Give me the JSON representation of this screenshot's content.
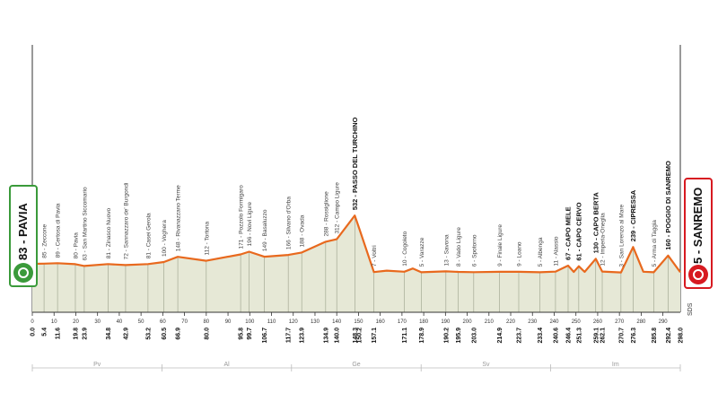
{
  "start": {
    "label": "83 - PAVIA",
    "color": "#3a9a3a",
    "icon": "cycling-icon"
  },
  "finish": {
    "label": "5 - SANREMO",
    "color": "#d71a21",
    "icon": "cycling-icon"
  },
  "credit": "SDS",
  "chart_data": {
    "type": "area",
    "title": "",
    "xlabel": "",
    "ylabel": "",
    "xlim": [
      0,
      298
    ],
    "line_color": "#e8691e",
    "fill_color": "#e6e8d6",
    "x_ticks": [
      "0",
      "10",
      "20",
      "30",
      "40",
      "50",
      "60",
      "70",
      "80",
      "90",
      "100",
      "110",
      "120",
      "130",
      "140",
      "150",
      "160",
      "170",
      "180",
      "190",
      "200",
      "210",
      "220",
      "230",
      "240",
      "250",
      "260",
      "270",
      "280",
      "290"
    ],
    "km_labels": [
      "0.0",
      "5.4",
      "11.6",
      "19.8",
      "23.9",
      "34.8",
      "42.9",
      "53.2",
      "60.5",
      "66.9",
      "80.0",
      "95.8",
      "99.7",
      "106.7",
      "117.7",
      "123.9",
      "134.9",
      "140.0",
      "148.3",
      "150.2",
      "157.1",
      "171.1",
      "178.9",
      "190.2",
      "195.9",
      "203.0",
      "214.9",
      "223.7",
      "233.4",
      "240.6",
      "246.4",
      "251.3",
      "259.1",
      "262.1",
      "270.7",
      "276.3",
      "285.8",
      "292.4",
      "298.0"
    ],
    "waypoints": [
      {
        "km": 5.4,
        "name": "85 - Zeccone"
      },
      {
        "km": 11.6,
        "name": "89 - Certosa di Pavia"
      },
      {
        "km": 19.8,
        "name": "80 - Pavia"
      },
      {
        "km": 23.9,
        "name": "63 - San Martino Siccomario"
      },
      {
        "km": 34.8,
        "name": "81 - Zinasco Nuovo"
      },
      {
        "km": 42.9,
        "name": "72 - Sannazzaro de' Burgondi"
      },
      {
        "km": 53.2,
        "name": "81 - Casei Gerola"
      },
      {
        "km": 60.5,
        "name": "100 - Voghera"
      },
      {
        "km": 66.9,
        "name": "148 - Rivanazzano Terme"
      },
      {
        "km": 80.0,
        "name": "112 - Tortona"
      },
      {
        "km": 95.8,
        "name": "171 - Pozzolo Formigaro"
      },
      {
        "km": 99.7,
        "name": "196 - Novi Ligure"
      },
      {
        "km": 106.7,
        "name": "149 - Basaluzzo"
      },
      {
        "km": 117.7,
        "name": "166 - Silvano d'Orba"
      },
      {
        "km": 123.9,
        "name": "188 - Ovada"
      },
      {
        "km": 134.9,
        "name": "288 - Rossiglione"
      },
      {
        "km": 140.0,
        "name": "312 - Campo Ligure"
      },
      {
        "km": 148.3,
        "name": "532 - PASSO DEL TURCHINO",
        "highlight": true
      },
      {
        "km": 157.1,
        "name": "7 - Voltri"
      },
      {
        "km": 171.1,
        "name": "10 - Cogoleto"
      },
      {
        "km": 178.9,
        "name": "5 - Varazze"
      },
      {
        "km": 190.2,
        "name": "13 - Savona"
      },
      {
        "km": 195.9,
        "name": "8 - Vado Ligure"
      },
      {
        "km": 203.0,
        "name": "6 - Spotorno"
      },
      {
        "km": 214.9,
        "name": "9 - Finale Ligure"
      },
      {
        "km": 223.7,
        "name": "9 - Loano"
      },
      {
        "km": 233.4,
        "name": "5 - Albenga"
      },
      {
        "km": 240.6,
        "name": "11 - Alassio"
      },
      {
        "km": 246.4,
        "name": "67 - CAPO MELE",
        "highlight": true
      },
      {
        "km": 251.3,
        "name": "61 - CAPO CERVO",
        "highlight": true
      },
      {
        "km": 259.1,
        "name": "130 - CAPO BERTA",
        "highlight": true
      },
      {
        "km": 262.1,
        "name": "12 - Imperia-Oneglia"
      },
      {
        "km": 270.7,
        "name": "3 - San Lorenzo al Mare"
      },
      {
        "km": 276.3,
        "name": "239 - CIPRESSA",
        "highlight": true
      },
      {
        "km": 285.8,
        "name": "5 - Arma di Taggia"
      },
      {
        "km": 292.4,
        "name": "160 - POGGIO DI SANREMO",
        "highlight": true
      }
    ],
    "sectors": [
      "Pv",
      "Al",
      "Ge",
      "Sv",
      "Im"
    ],
    "profile": [
      {
        "km": 0,
        "alt": 83
      },
      {
        "km": 5.4,
        "alt": 85
      },
      {
        "km": 11.6,
        "alt": 89
      },
      {
        "km": 19.8,
        "alt": 80
      },
      {
        "km": 23.9,
        "alt": 63
      },
      {
        "km": 34.8,
        "alt": 81
      },
      {
        "km": 42.9,
        "alt": 72
      },
      {
        "km": 53.2,
        "alt": 81
      },
      {
        "km": 60.5,
        "alt": 100
      },
      {
        "km": 66.9,
        "alt": 148
      },
      {
        "km": 80.0,
        "alt": 112
      },
      {
        "km": 95.8,
        "alt": 171
      },
      {
        "km": 99.7,
        "alt": 196
      },
      {
        "km": 106.7,
        "alt": 149
      },
      {
        "km": 117.7,
        "alt": 166
      },
      {
        "km": 123.9,
        "alt": 188
      },
      {
        "km": 134.9,
        "alt": 288
      },
      {
        "km": 140.0,
        "alt": 312
      },
      {
        "km": 148.3,
        "alt": 532
      },
      {
        "km": 150.2,
        "alt": 420
      },
      {
        "km": 157.1,
        "alt": 7
      },
      {
        "km": 163.0,
        "alt": 20
      },
      {
        "km": 171.1,
        "alt": 10
      },
      {
        "km": 175.0,
        "alt": 40
      },
      {
        "km": 178.9,
        "alt": 5
      },
      {
        "km": 190.2,
        "alt": 13
      },
      {
        "km": 195.9,
        "alt": 8
      },
      {
        "km": 203.0,
        "alt": 6
      },
      {
        "km": 214.9,
        "alt": 9
      },
      {
        "km": 223.7,
        "alt": 9
      },
      {
        "km": 233.4,
        "alt": 5
      },
      {
        "km": 240.6,
        "alt": 11
      },
      {
        "km": 246.4,
        "alt": 67
      },
      {
        "km": 249.0,
        "alt": 8
      },
      {
        "km": 251.3,
        "alt": 61
      },
      {
        "km": 254.0,
        "alt": 8
      },
      {
        "km": 259.1,
        "alt": 130
      },
      {
        "km": 262.1,
        "alt": 12
      },
      {
        "km": 270.7,
        "alt": 3
      },
      {
        "km": 276.3,
        "alt": 239
      },
      {
        "km": 281.0,
        "alt": 10
      },
      {
        "km": 285.8,
        "alt": 5
      },
      {
        "km": 292.4,
        "alt": 160
      },
      {
        "km": 298.0,
        "alt": 5
      }
    ]
  }
}
